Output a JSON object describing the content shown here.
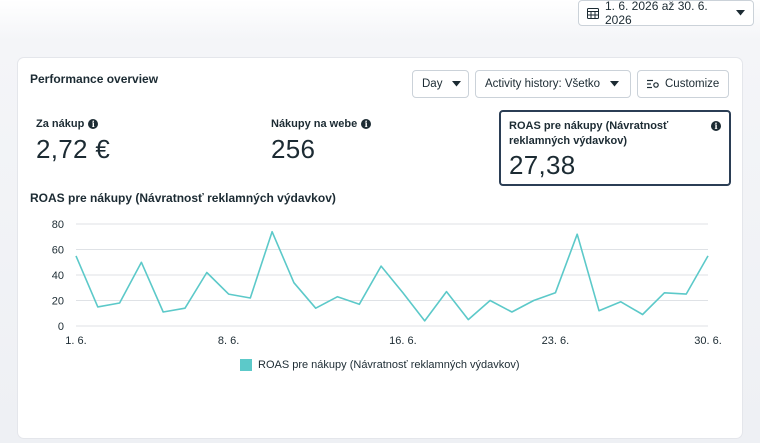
{
  "date_range": {
    "label": "1. 6. 2026 až 30. 6. 2026"
  },
  "panel": {
    "title": "Performance overview",
    "controls": {
      "granularity": "Day",
      "activity_history": "Activity history: Všetko",
      "customize": "Customize"
    }
  },
  "metrics": [
    {
      "label": "Za nákup",
      "value": "2,72 €"
    },
    {
      "label": "Nákupy na webe",
      "value": "256"
    },
    {
      "label": "ROAS pre nákupy (Návratnosť reklamných výdavkov)",
      "value": "27,38",
      "selected": true
    }
  ],
  "chart_data": {
    "type": "line",
    "title": "ROAS pre nákupy (Návratnosť reklamných výdavkov)",
    "x": [
      "1. 6.",
      "2. 6.",
      "3. 6.",
      "4. 6.",
      "5. 6.",
      "6. 6.",
      "7. 6.",
      "8. 6.",
      "9. 6.",
      "10. 6.",
      "11. 6.",
      "12. 6.",
      "13. 6.",
      "14. 6.",
      "15. 6.",
      "16. 6.",
      "17. 6.",
      "18. 6.",
      "19. 6.",
      "20. 6.",
      "21. 6.",
      "22. 6.",
      "23. 6.",
      "24. 6.",
      "25. 6.",
      "26. 6.",
      "27. 6.",
      "28. 6.",
      "29. 6.",
      "30. 6."
    ],
    "x_tick_labels": [
      "1. 6.",
      "8. 6.",
      "16. 6.",
      "23. 6.",
      "30. 6."
    ],
    "series": [
      {
        "name": "ROAS pre nákupy (Návratnosť reklamných výdavkov)",
        "color": "#5cc9c9",
        "values": [
          55,
          15,
          18,
          50,
          11,
          14,
          42,
          25,
          22,
          74,
          34,
          14,
          23,
          17,
          47,
          26,
          4,
          27,
          5,
          20,
          11,
          20,
          26,
          72,
          12,
          19,
          9,
          26,
          25,
          55
        ]
      }
    ],
    "ylim": [
      0,
      80
    ],
    "y_ticks": [
      0,
      20,
      40,
      60,
      80
    ],
    "grid": true,
    "legend": "bottom-center"
  }
}
